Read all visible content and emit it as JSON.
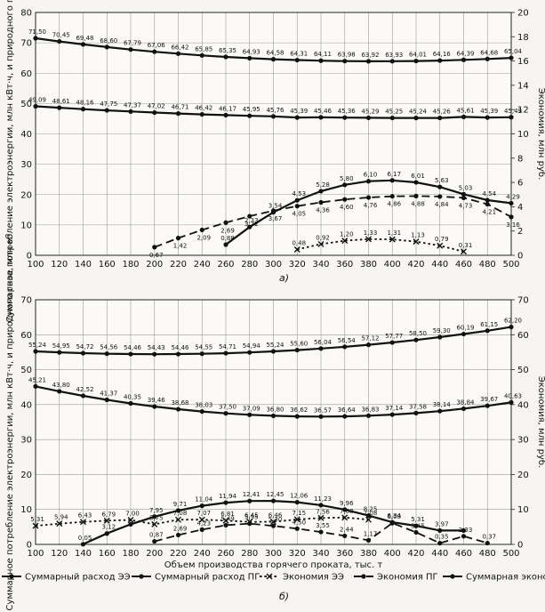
{
  "chart_data": [
    {
      "type": "line",
      "caption": "а)",
      "ylabel_left": "Суммарное потребление электроэнергии, млн кВт·ч, и природного газа, млн м³",
      "ylabel_right": "Экономия, млн руб.",
      "x_ticks": [
        100,
        120,
        140,
        160,
        180,
        200,
        220,
        240,
        260,
        280,
        300,
        320,
        340,
        360,
        380,
        400,
        420,
        440,
        460,
        480,
        500
      ],
      "ylim_left": [
        0,
        80
      ],
      "yticks_left": [
        0,
        10,
        20,
        30,
        40,
        50,
        60,
        70,
        80
      ],
      "ylim_right": [
        0,
        20
      ],
      "yticks_right": [
        0,
        2,
        4,
        6,
        8,
        10,
        12,
        14,
        16,
        18,
        20
      ],
      "series": [
        {
          "name": "Суммарный расход ЭЭ",
          "axis": "left",
          "style": "solid",
          "x": [
            100,
            120,
            140,
            160,
            180,
            200,
            220,
            240,
            260,
            280,
            300,
            320,
            340,
            360,
            380,
            400,
            420,
            440,
            460,
            480,
            500
          ],
          "y": [
            71.5,
            70.45,
            69.48,
            68.6,
            67.79,
            67.06,
            66.42,
            65.85,
            65.35,
            64.93,
            64.58,
            64.31,
            64.11,
            63.98,
            63.92,
            63.93,
            64.01,
            64.16,
            64.39,
            64.68,
            65.04
          ],
          "labels": [
            "71,50",
            "70,45",
            "69,48",
            "68,60",
            "67,79",
            "67,06",
            "66,42",
            "65,85",
            "65,35",
            "64,93",
            "64,58",
            "64,31",
            "64,11",
            "63,98",
            "63,92",
            "63,93",
            "64,01",
            "64,16",
            "64,39",
            "64,68",
            "65,04"
          ]
        },
        {
          "name": "Суммарный расход ПГ",
          "axis": "left",
          "style": "solid",
          "x": [
            100,
            120,
            140,
            160,
            180,
            200,
            220,
            240,
            260,
            280,
            300,
            320,
            340,
            360,
            380,
            400,
            420,
            440,
            460,
            480,
            500
          ],
          "y": [
            49.09,
            48.61,
            48.16,
            47.75,
            47.37,
            47.02,
            46.71,
            46.42,
            46.17,
            45.95,
            45.76,
            45.39,
            45.46,
            45.36,
            45.29,
            45.25,
            45.24,
            45.26,
            45.61,
            45.39,
            45.49
          ],
          "labels": [
            "49,09",
            "48,61",
            "48,16",
            "47,75",
            "47,37",
            "47,02",
            "46,71",
            "46,42",
            "46,17",
            "45,95",
            "45,76",
            "45,39",
            "45,46",
            "45,36",
            "45,29",
            "45,25",
            "45,24",
            "45,26",
            "45,61",
            "45,39",
            "45,49"
          ]
        },
        {
          "name": "Экономия ЭЭ",
          "axis": "right",
          "style": "dotted",
          "x": [
            320,
            340,
            360,
            380,
            400,
            420,
            440,
            460
          ],
          "y": [
            0.48,
            0.92,
            1.2,
            1.33,
            1.31,
            1.13,
            0.79,
            0.31
          ],
          "labels": [
            "0,48",
            "0,92",
            "1,20",
            "1,33",
            "1,31",
            "1,13",
            "0,79",
            "0,31"
          ]
        },
        {
          "name": "Экономия ПГ",
          "axis": "right",
          "style": "dashed",
          "x": [
            200,
            220,
            240,
            260,
            280,
            300,
            320,
            340,
            360,
            380,
            400,
            420,
            440,
            460,
            480,
            500
          ],
          "y": [
            0.67,
            1.42,
            2.09,
            2.69,
            3.22,
            3.67,
            4.05,
            4.36,
            4.6,
            4.76,
            4.86,
            4.88,
            4.84,
            4.73,
            4.21,
            3.16
          ],
          "labels": [
            "0,67",
            "1,42",
            "2,09",
            "2,69",
            "3,22",
            "3,67",
            "4,05",
            "4,36",
            "4,60",
            "4,76",
            "4,86",
            "4,88",
            "4,84",
            "4,73",
            "4,21",
            "3,16"
          ]
        },
        {
          "name": "Суммарная экономия",
          "axis": "right",
          "style": "solid",
          "x": [
            260,
            280,
            300,
            320,
            340,
            360,
            380,
            400,
            420,
            440,
            460,
            480,
            500
          ],
          "y": [
            0.88,
            2.33,
            3.54,
            4.53,
            5.28,
            5.8,
            6.1,
            6.17,
            6.01,
            5.63,
            5.03,
            4.54,
            4.29
          ],
          "labels": [
            "0,88",
            "2,33",
            "3,54",
            "4,53",
            "5,28",
            "5,80",
            "6,10",
            "6,17",
            "6,01",
            "5,63",
            "5,03",
            "4,54",
            "4,29"
          ]
        }
      ]
    },
    {
      "type": "line",
      "caption": "б)",
      "xlabel": "Объем производства горячего проката, тыс. т",
      "ylabel_left": "Суммарное потребление электроэнергии, млн кВт·ч, и природного газа, млн м³",
      "ylabel_right": "Экономия, млн руб.",
      "x_ticks": [
        100,
        120,
        140,
        160,
        180,
        200,
        220,
        240,
        260,
        280,
        300,
        320,
        340,
        360,
        380,
        400,
        420,
        440,
        460,
        480,
        500
      ],
      "ylim_left": [
        0,
        70
      ],
      "yticks_left": [
        0,
        10,
        20,
        30,
        40,
        50,
        60,
        70
      ],
      "ylim_right": [
        0,
        70
      ],
      "yticks_right": [
        0,
        10,
        20,
        30,
        40,
        50,
        60,
        70
      ],
      "series": [
        {
          "name": "Суммарный расход ЭЭ",
          "axis": "left",
          "style": "solid",
          "x": [
            100,
            120,
            140,
            160,
            180,
            200,
            220,
            240,
            260,
            280,
            300,
            320,
            340,
            360,
            380,
            400,
            420,
            440,
            460,
            480,
            500
          ],
          "y": [
            55.24,
            54.95,
            54.72,
            54.56,
            54.46,
            54.43,
            54.46,
            54.55,
            54.71,
            54.94,
            55.24,
            55.6,
            56.04,
            56.54,
            57.12,
            57.77,
            58.5,
            59.3,
            60.19,
            61.15,
            62.2
          ],
          "labels": [
            "55,24",
            "54,95",
            "54,72",
            "54,56",
            "54,46",
            "54,43",
            "54,46",
            "54,55",
            "54,71",
            "54,94",
            "55,24",
            "55,60",
            "56,04",
            "56,54",
            "57,12",
            "57,77",
            "58,50",
            "59,30",
            "60,19",
            "61,15",
            "62,20"
          ]
        },
        {
          "name": "Суммарный расход ПГ",
          "axis": "left",
          "style": "solid",
          "x": [
            100,
            120,
            140,
            160,
            180,
            200,
            220,
            240,
            260,
            280,
            300,
            320,
            340,
            360,
            380,
            400,
            420,
            440,
            460,
            480,
            500
          ],
          "y": [
            45.21,
            43.8,
            42.52,
            41.37,
            40.35,
            39.46,
            38.68,
            38.03,
            37.5,
            37.09,
            36.8,
            36.62,
            36.57,
            36.64,
            36.83,
            37.14,
            37.58,
            38.14,
            38.84,
            39.67,
            40.63
          ],
          "labels": [
            "45,21",
            "43,80",
            "42,52",
            "41,37",
            "40,35",
            "39,46",
            "38,68",
            "38,03",
            "37,50",
            "37,09",
            "36,80",
            "36,62",
            "36,57",
            "36,64",
            "36,83",
            "37,14",
            "37,58",
            "38,14",
            "38,84",
            "39,67",
            "40,63"
          ]
        },
        {
          "name": "Экономия ЭЭ",
          "axis": "right",
          "style": "dotted",
          "x": [
            100,
            120,
            140,
            160,
            180,
            200,
            220,
            240,
            260,
            280,
            300,
            320,
            340,
            360,
            380
          ],
          "y": [
            5.31,
            5.94,
            6.43,
            6.79,
            7.0,
            5.75,
            7.08,
            7.07,
            6.81,
            6.45,
            6.46,
            7.15,
            7.56,
            7.68,
            7.08
          ],
          "labels": [
            "5,31",
            "5,94",
            "6,43",
            "6,79",
            "7,00",
            "5,75",
            "7,08",
            "7,07",
            "6,81",
            "6,45",
            "6,46",
            "7,15",
            "7,56",
            "7,68",
            "7,08"
          ]
        },
        {
          "name": "Экономия ПГ",
          "axis": "right",
          "style": "dashed",
          "x": [
            200,
            220,
            240,
            260,
            280,
            300,
            320,
            340,
            360,
            380,
            400,
            420,
            440,
            460,
            480
          ],
          "y": [
            0.87,
            2.69,
            4.23,
            5.49,
            5.95,
            5.3,
            4.5,
            3.55,
            2.44,
            1.17,
            6.08,
            3.45,
            0.35,
            2.33,
            0.37
          ],
          "labels": [
            "0,87",
            "2,69",
            "4,23",
            "5,49",
            "5,95",
            "5,30",
            "4,50",
            "3,55",
            "2,44",
            "1,17",
            "6,08",
            "3,45",
            "0,35",
            "2,33",
            "0,37"
          ]
        },
        {
          "name": "Суммарная экономия",
          "axis": "right",
          "style": "solid",
          "x": [
            140,
            160,
            180,
            200,
            220,
            240,
            260,
            280,
            300,
            320,
            340,
            360,
            380,
            400,
            420,
            440,
            460
          ],
          "y": [
            0.05,
            3.12,
            5.75,
            7.95,
            9.71,
            11.04,
            11.94,
            12.41,
            12.45,
            12.06,
            11.23,
            9.96,
            8.25,
            6.34,
            5.31,
            3.97,
            3.97
          ],
          "labels": [
            "0,05",
            "3,12",
            "",
            "7,95",
            "9,71",
            "11,04",
            "11,94",
            "12,41",
            "12,45",
            "12,06",
            "11,23",
            "9,96",
            "8,25",
            "6,34",
            "5,31",
            "3,97",
            ""
          ]
        }
      ]
    }
  ],
  "legend": [
    "Суммарный расход ЭЭ",
    "Суммарный расход ПГ",
    "Экономия ЭЭ",
    "Экономия ПГ",
    "Суммарная эконо"
  ]
}
